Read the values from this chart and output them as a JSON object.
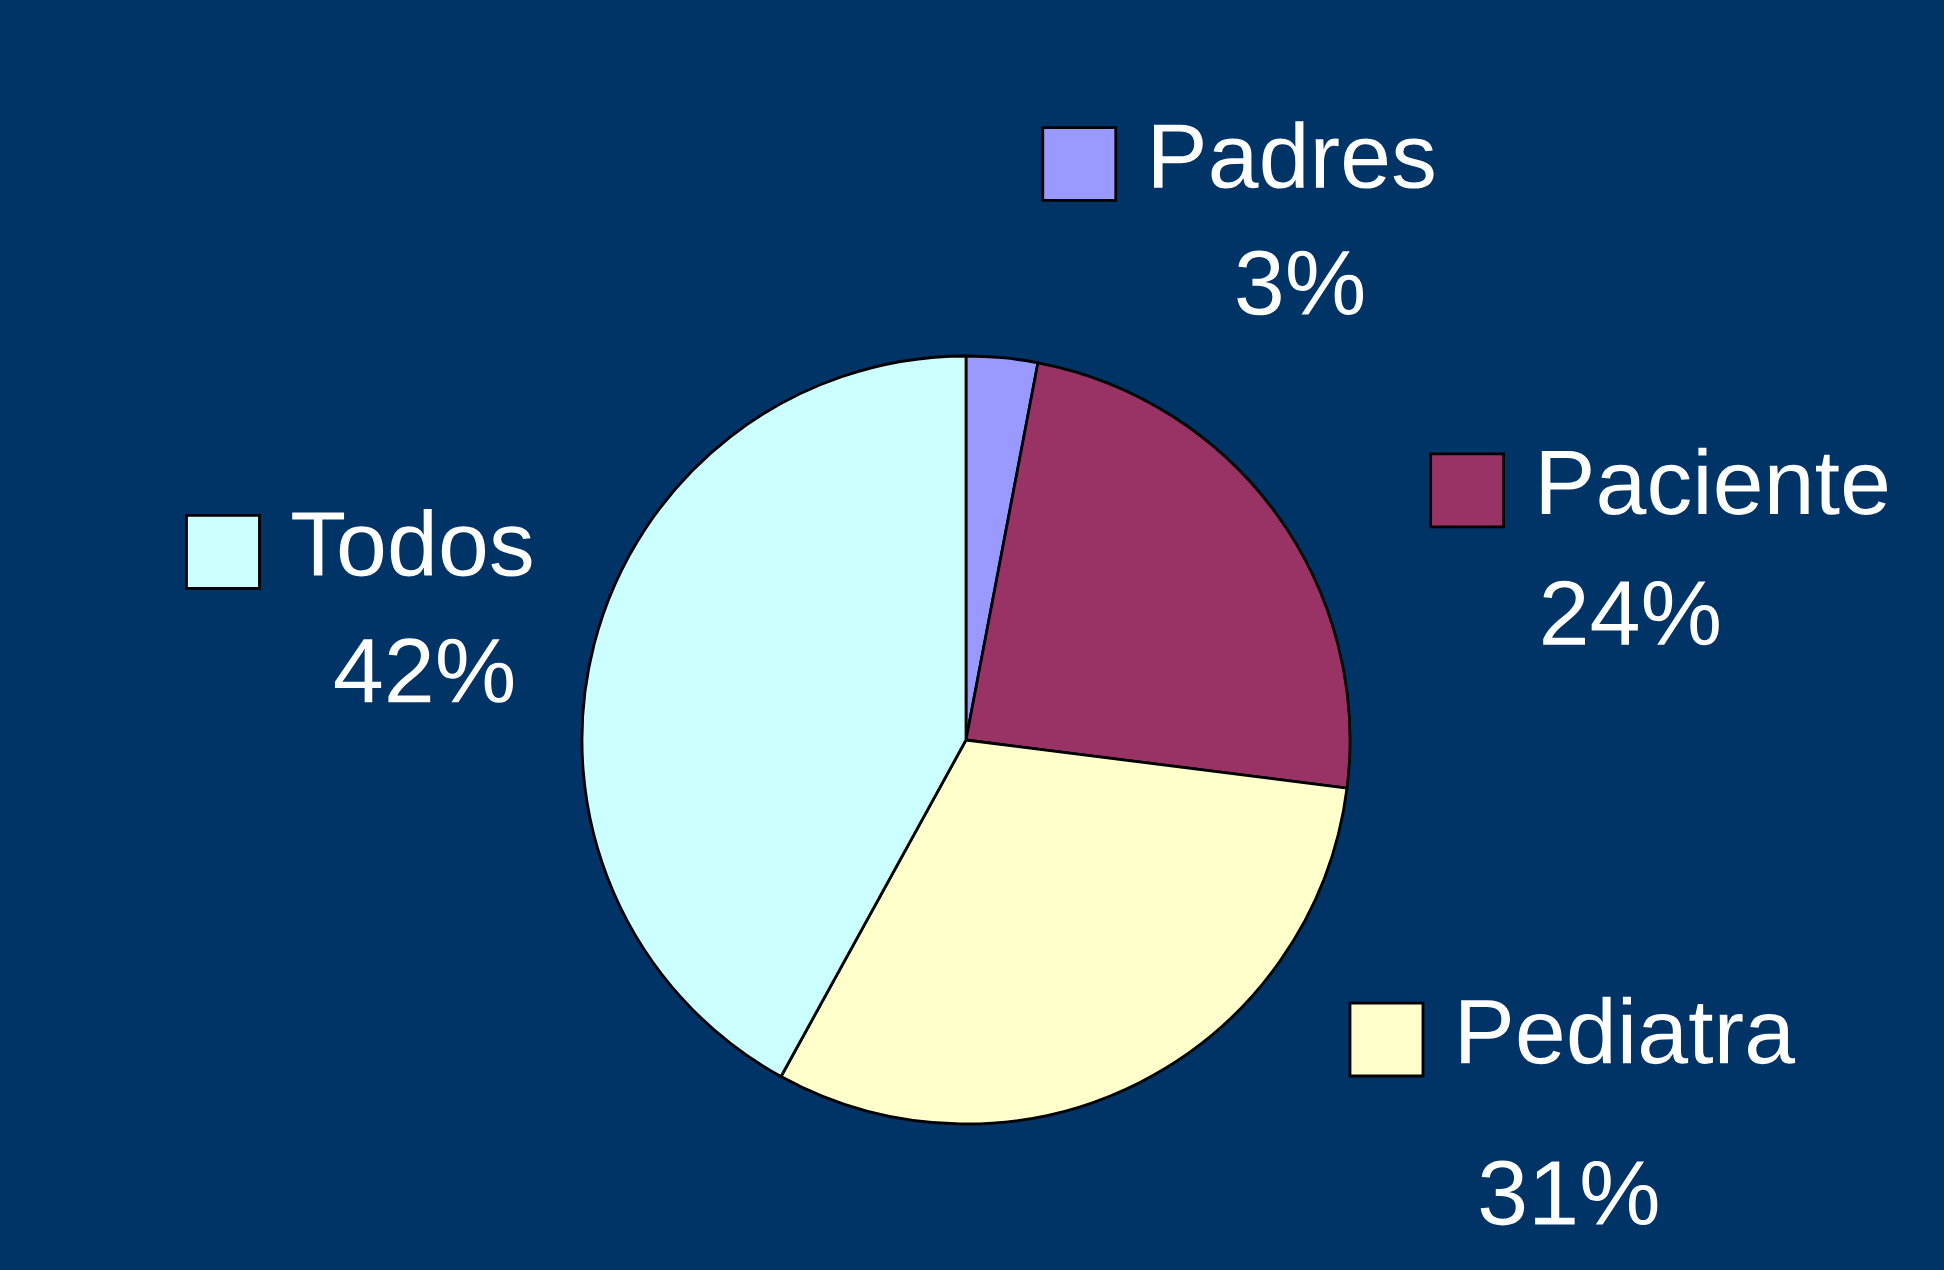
{
  "chart_data": {
    "type": "pie",
    "categories": [
      "Padres",
      "Paciente",
      "Pediatra",
      "Todos"
    ],
    "values": [
      3,
      24,
      31,
      42
    ],
    "value_labels": [
      "3%",
      "24%",
      "31%",
      "42%"
    ],
    "colors": [
      "#9999ff",
      "#993366",
      "#ffffcc",
      "#ccffff"
    ],
    "legend": "right"
  }
}
